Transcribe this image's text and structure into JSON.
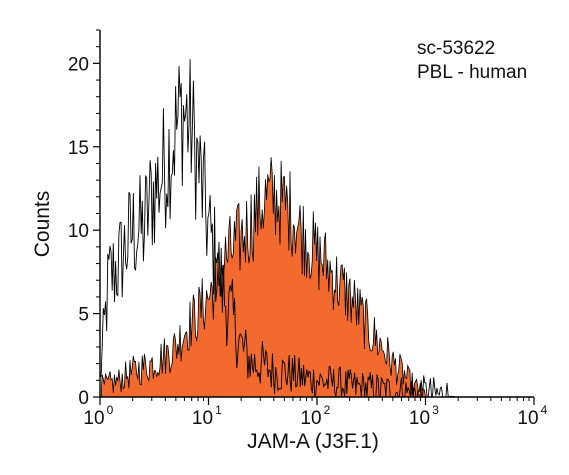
{
  "annotation": {
    "catalog": "sc-53622",
    "sample": "PBL - human"
  },
  "chart_data": {
    "type": "area",
    "title": "",
    "xlabel": "JAM-A (J3F.1)",
    "ylabel": "Counts",
    "xscale": "log",
    "xlim": [
      1,
      10000
    ],
    "ylim": [
      0,
      22
    ],
    "x_ticks": [
      {
        "base": "10",
        "exp": "0"
      },
      {
        "base": "10",
        "exp": "1"
      },
      {
        "base": "10",
        "exp": "2"
      },
      {
        "base": "10",
        "exp": "3"
      },
      {
        "base": "10",
        "exp": "4"
      }
    ],
    "y_ticks": [
      "0",
      "5",
      "10",
      "15",
      "20"
    ],
    "grid": false,
    "colors": {
      "stained": "#f26a2e",
      "outline": "#000000",
      "axis": "#000000"
    },
    "series": [
      {
        "style": "outline",
        "x": [
          1.0,
          1.2,
          1.5,
          2.0,
          2.5,
          3.0,
          3.5,
          4.0,
          4.5,
          5.0,
          5.5,
          6.0,
          7.0,
          8.0,
          9.0,
          10,
          12,
          14,
          16,
          18,
          20,
          25,
          30,
          40,
          50,
          70,
          100,
          150,
          200,
          300,
          500,
          1000,
          2000
        ],
        "values": [
          1,
          7,
          8,
          10,
          10,
          12,
          13,
          14,
          15,
          16,
          17,
          17,
          16,
          14,
          12,
          10,
          8,
          6,
          5,
          4,
          3,
          2,
          2,
          1.5,
          1.5,
          1.2,
          1,
          0.8,
          0.6,
          0.5,
          0.3,
          0.2,
          0
        ]
      },
      {
        "style": "filled",
        "x": [
          1.0,
          1.5,
          2.0,
          3.0,
          4.0,
          5.0,
          6.0,
          7.0,
          8.0,
          10,
          12,
          15,
          20,
          25,
          30,
          35,
          40,
          50,
          60,
          70,
          80,
          100,
          120,
          150,
          200,
          250,
          300,
          400,
          500,
          600,
          700,
          800,
          900,
          1000
        ],
        "values": [
          0.5,
          1,
          1.5,
          2,
          2.5,
          3,
          4,
          4.5,
          5,
          6,
          7,
          8.5,
          9.5,
          10.5,
          11.5,
          12,
          12,
          11.5,
          11,
          10,
          9.5,
          8.5,
          8,
          7,
          6,
          5,
          4,
          3,
          2,
          1.5,
          1,
          0.5,
          0.3,
          0
        ]
      }
    ]
  }
}
